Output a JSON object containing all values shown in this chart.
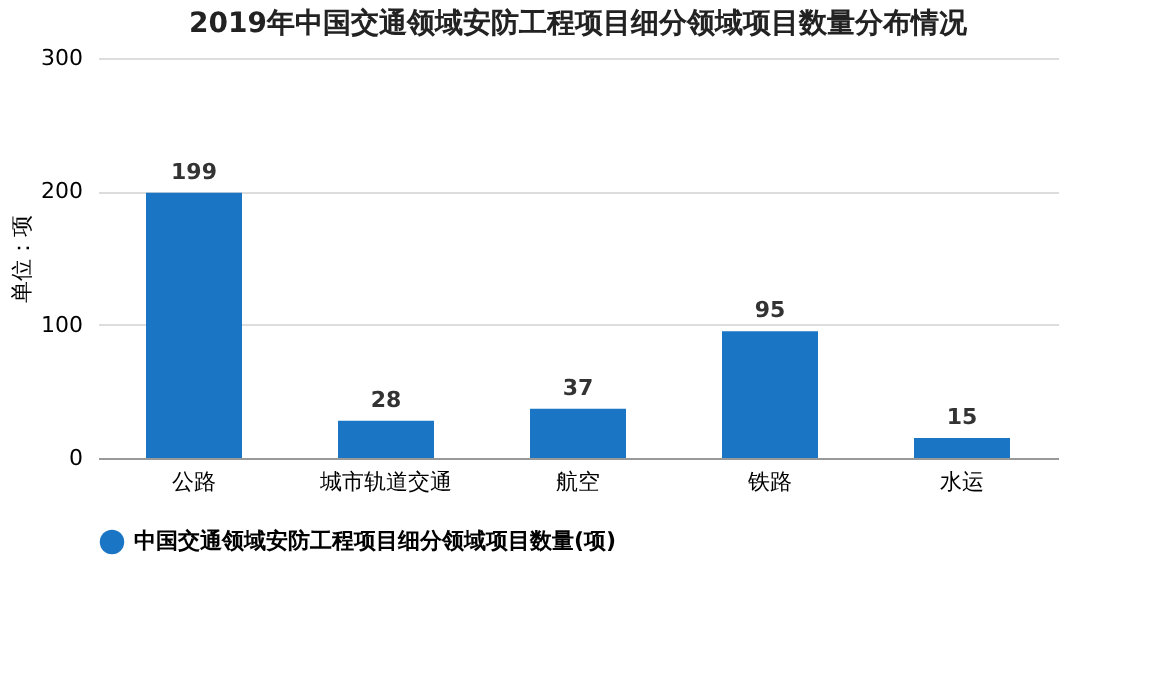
{
  "chart_data": {
    "type": "bar",
    "title": "2019年中国交通领域安防工程项目细分领域项目数量分布情况",
    "categories": [
      "公路",
      "城市轨道交通",
      "航空",
      "铁路",
      "水运"
    ],
    "series": [
      {
        "name": "中国交通领域安防工程项目细分领域项目数量(项)",
        "color": "#1b75c5",
        "values": [
          199,
          28,
          37,
          95,
          15
        ]
      }
    ],
    "ylabel": "单位：项",
    "ylim": [
      0,
      300
    ],
    "yticks": [
      0,
      100,
      200,
      300
    ],
    "grid": "y",
    "legend": "bottom",
    "data_labels": true
  }
}
